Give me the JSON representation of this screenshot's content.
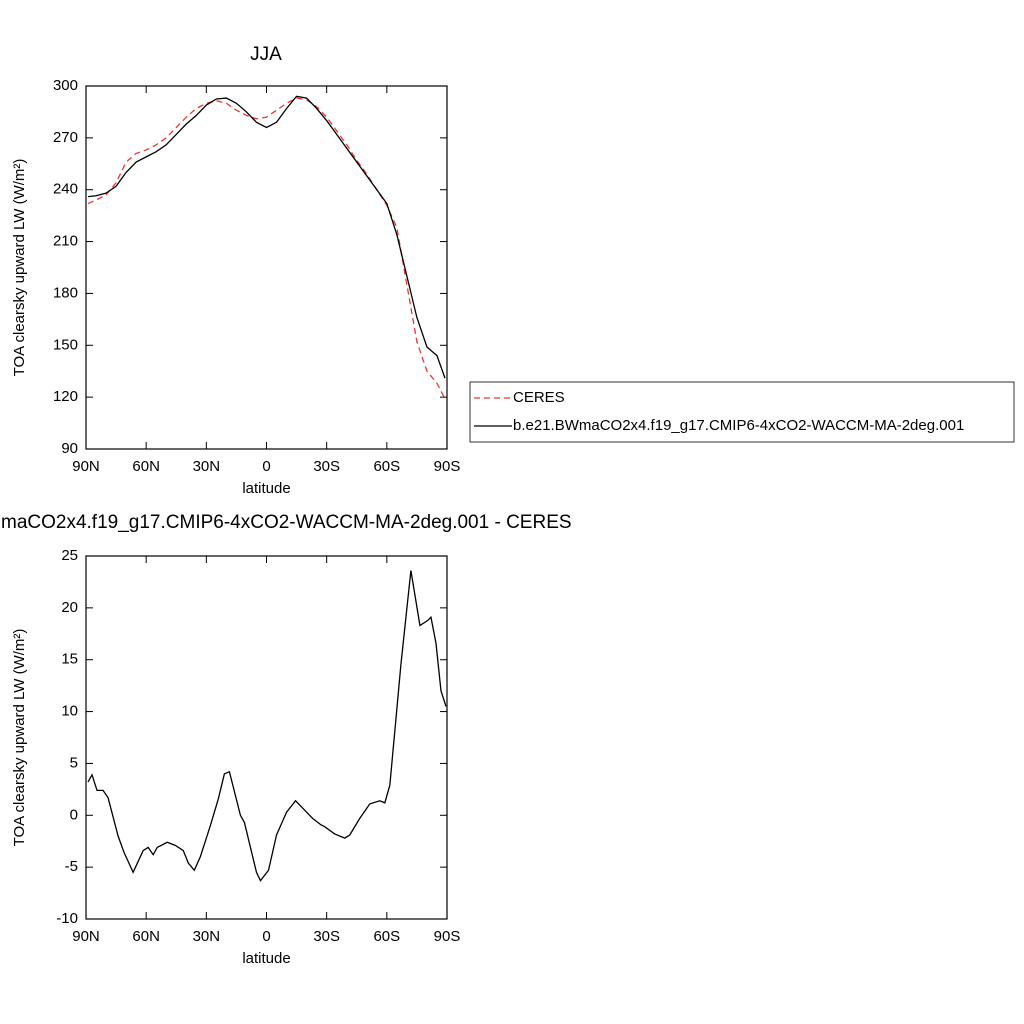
{
  "chart_data": [
    {
      "type": "line",
      "title": "JJA",
      "xlabel": "latitude",
      "ylabel": "TOA clearsky upward LW (W/m²)",
      "x": [
        89,
        85,
        80,
        75,
        70,
        65,
        60,
        55,
        50,
        45,
        40,
        35,
        30,
        25,
        20,
        15,
        10,
        5,
        0,
        -5,
        -10,
        -15,
        -20,
        -25,
        -30,
        -35,
        -40,
        -45,
        -50,
        -55,
        -60,
        -65,
        -70,
        -75,
        -80,
        -85,
        -89
      ],
      "series": [
        {
          "name": "CERES",
          "color": "#e8392f",
          "dash": true,
          "values": [
            232,
            234,
            237,
            244,
            256,
            261,
            263,
            266,
            270,
            276,
            282,
            287,
            290,
            291.5,
            290,
            286,
            283,
            281,
            282,
            286,
            290,
            293,
            292,
            288,
            282,
            274,
            266,
            257,
            249,
            240,
            231,
            218,
            185,
            152,
            135,
            128,
            119
          ]
        },
        {
          "name": "b.e21.BWmaCO2x4.f19_g17.CMIP6-4xCO2-WACCM-MA-2deg.001",
          "color": "#000000",
          "dash": false,
          "values": [
            236,
            236.5,
            238,
            242,
            250,
            256,
            259,
            262,
            266,
            272,
            278,
            283,
            289,
            292.5,
            293,
            290,
            285,
            279,
            276,
            279,
            287,
            294,
            293,
            287,
            280,
            272,
            264,
            256,
            248,
            240,
            232,
            214,
            190,
            166,
            149,
            144,
            131
          ]
        }
      ],
      "xlim": [
        90,
        -90
      ],
      "xticks": [
        {
          "value": 90,
          "label": "90N"
        },
        {
          "value": 60,
          "label": "60N"
        },
        {
          "value": 30,
          "label": "30N"
        },
        0,
        {
          "value": -30,
          "label": "30S"
        },
        {
          "value": -60,
          "label": "60S"
        },
        {
          "value": -90,
          "label": "90S"
        }
      ],
      "ylim": [
        90,
        300
      ],
      "yticks": [
        90,
        120,
        150,
        180,
        210,
        240,
        270,
        300
      ],
      "legend": "right"
    },
    {
      "type": "line",
      "title": "maCO2x4.f19_g17.CMIP6-4xCO2-WACCM-MA-2deg.001 - CERES",
      "xlabel": "latitude",
      "ylabel": "TOA clearsky upward LW (W/m²)",
      "x": [
        89,
        87,
        84.5,
        81.5,
        79,
        74,
        71,
        66.5,
        61.5,
        59,
        56.5,
        54.5,
        49.5,
        45.5,
        41.5,
        39,
        36,
        33,
        28,
        24,
        21,
        18.5,
        13,
        11,
        5,
        3,
        -1,
        -5,
        -10,
        -14.5,
        -17,
        -20,
        -23,
        -27,
        -29,
        -34,
        -39,
        -41.5,
        -46.5,
        -51.5,
        -56.5,
        -59,
        -61.5,
        -64.5,
        -67,
        -72,
        -76.5,
        -80.5,
        -82,
        -84.5,
        -87,
        -89.5
      ],
      "values": [
        3.2,
        3.9,
        2.4,
        2.4,
        1.7,
        -2,
        -3.6,
        -5.5,
        -3.4,
        -3.1,
        -3.8,
        -3.1,
        -2.6,
        -2.9,
        -3.4,
        -4.6,
        -5.3,
        -4,
        -1,
        1.6,
        4,
        4.2,
        0,
        -0.7,
        -5.5,
        -6.3,
        -5.3,
        -1.9,
        0.3,
        1.4,
        0.9,
        0.3,
        -0.3,
        -0.9,
        -1.1,
        -1.8,
        -2.2,
        -1.9,
        -0.3,
        1.1,
        1.4,
        1.2,
        2.9,
        9.2,
        14.5,
        23.6,
        18.3,
        18.8,
        19.1,
        16.6,
        12,
        10.5
      ],
      "color": "#000000",
      "xlim": [
        90,
        -90
      ],
      "xticks": [
        {
          "value": 90,
          "label": "90N"
        },
        {
          "value": 60,
          "label": "60N"
        },
        {
          "value": 30,
          "label": "30N"
        },
        0,
        {
          "value": -30,
          "label": "30S"
        },
        {
          "value": -60,
          "label": "60S"
        },
        {
          "value": -90,
          "label": "90S"
        }
      ],
      "ylim": [
        -10,
        25
      ],
      "yticks": [
        -10,
        -5,
        0,
        5,
        10,
        15,
        20,
        25
      ]
    }
  ]
}
